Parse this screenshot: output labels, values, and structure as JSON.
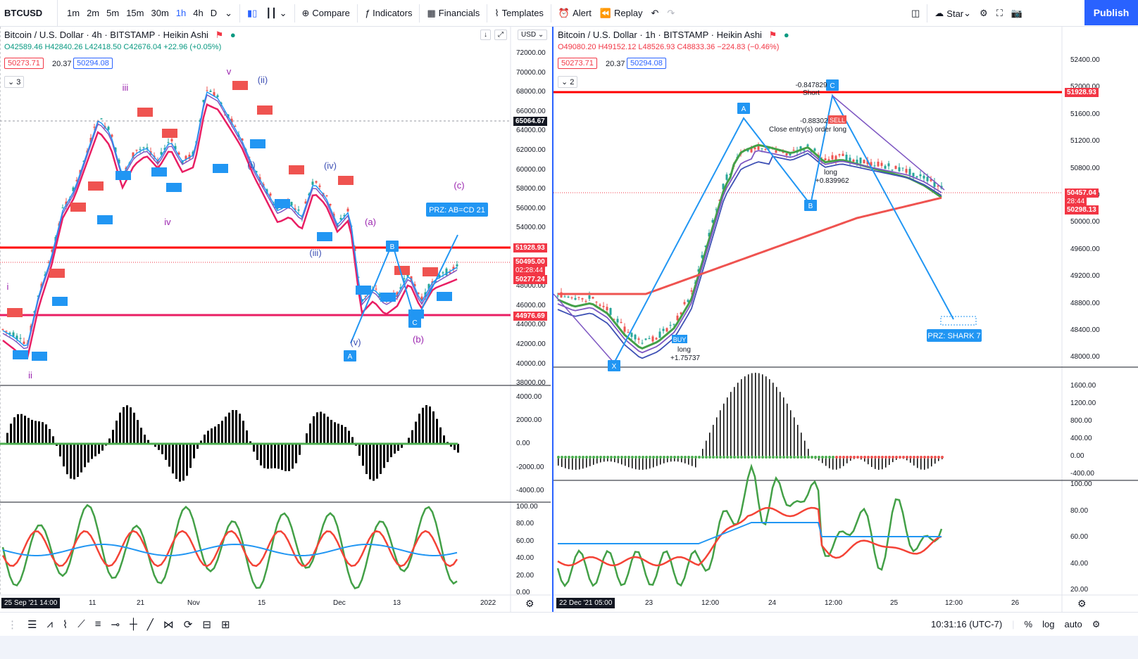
{
  "toolbar": {
    "symbol": "BTCUSD",
    "timeframes": [
      "1m",
      "2m",
      "5m",
      "15m",
      "30m",
      "1h",
      "4h",
      "D"
    ],
    "active_timeframe": "1h",
    "compare": "Compare",
    "indicators": "Indicators",
    "financials": "Financials",
    "templates": "Templates",
    "alert": "Alert",
    "replay": "Replay",
    "star": "Star",
    "publish": "Publish"
  },
  "left": {
    "title": "Bitcoin / U.S. Dollar · 4h · BITSTAMP · Heikin Ashi",
    "ohlc": "O42589.46 H42840.26 L42418.50 C42676.04 +22.96 (+0.05%)",
    "bid": "50273.71",
    "spread": "20.37",
    "ask": "50294.08",
    "collapse": "3",
    "currency": "USD",
    "price_axis": [
      "72000.00",
      "70000.00",
      "68000.00",
      "66000.00",
      "64000.00",
      "62000.00",
      "60000.00",
      "58000.00",
      "56000.00",
      "54000.00",
      "52000.00",
      "50000.00",
      "48000.00",
      "46000.00",
      "44000.00",
      "42000.00",
      "40000.00",
      "38000.00"
    ],
    "crosshair_price": "65064.67",
    "tags": {
      "resistance": "51928.93",
      "last": "50495.00",
      "countdown": "02:28:44",
      "mid": "50277.24",
      "support": "44976.69"
    },
    "osc_axis": [
      "4000.00",
      "2000.00",
      "0.00",
      "-2000.00",
      "-4000.00"
    ],
    "rsi_axis": [
      "100.00",
      "80.00",
      "60.00",
      "40.00",
      "20.00",
      "0.00"
    ],
    "time_axis": [
      "11",
      "21",
      "Nov",
      "15",
      "Dec",
      "13",
      "2022"
    ],
    "time_cursor": "25 Sep '21  14:00",
    "labels": {
      "prz": "PRZ: AB=CD 21",
      "wave_iii": "(iii)",
      "wave_iv": "(iv)",
      "wave_v": "(v)",
      "wave_ii": "(ii)",
      "wave_i": "(i)",
      "wave_a": "(a)",
      "wave_b": "(b)",
      "wave_c": "(c)",
      "iii": "iii",
      "v": "v",
      "iv": "iv",
      "ii": "ii",
      "i": "i",
      "pA": "A",
      "pB": "B",
      "pC": "C"
    }
  },
  "right": {
    "title": "Bitcoin / U.S. Dollar · 1h · BITSTAMP · Heikin Ashi",
    "ohlc": "O49080.20 H49152.12 L48526.93 C48833.36 −224.83 (−0.46%)",
    "bid": "50273.71",
    "spread": "20.37",
    "ask": "50294.08",
    "collapse": "2",
    "price_axis": [
      "52400.00",
      "52000.00",
      "51600.00",
      "51200.00",
      "50800.00",
      "50400.00",
      "50000.00",
      "49600.00",
      "49200.00",
      "48800.00",
      "48400.00",
      "48000.00"
    ],
    "tags": {
      "resistance": "51928.93",
      "last": "50457.04",
      "countdown": "28:44",
      "mid": "50298.13"
    },
    "osc_axis": [
      "1600.00",
      "1200.00",
      "800.00",
      "400.00",
      "0.00",
      "-400.00"
    ],
    "rsi_axis": [
      "100.00",
      "80.00",
      "60.00",
      "40.00",
      "20.00"
    ],
    "time_axis": [
      "23",
      "12:00",
      "24",
      "12:00",
      "25",
      "12:00",
      "26"
    ],
    "time_cursor": "22 Dec '21  05:00",
    "labels": {
      "prz": "PRZ: SHARK 7",
      "short": "Short",
      "short_val": "-0.847829",
      "close": "Close entry(s) order long",
      "close_val": "-0.883026",
      "long1": "long",
      "long1_val": "+0.839962",
      "long2": "long",
      "long2_val": "+1.75737",
      "pA": "A",
      "pB": "B",
      "pC": "C",
      "pX": "X",
      "buy": "BUY",
      "sell": "SELL"
    }
  },
  "bottom": {
    "time": "10:31:16 (UTC-7)",
    "percent": "%",
    "log": "log",
    "auto": "auto"
  }
}
